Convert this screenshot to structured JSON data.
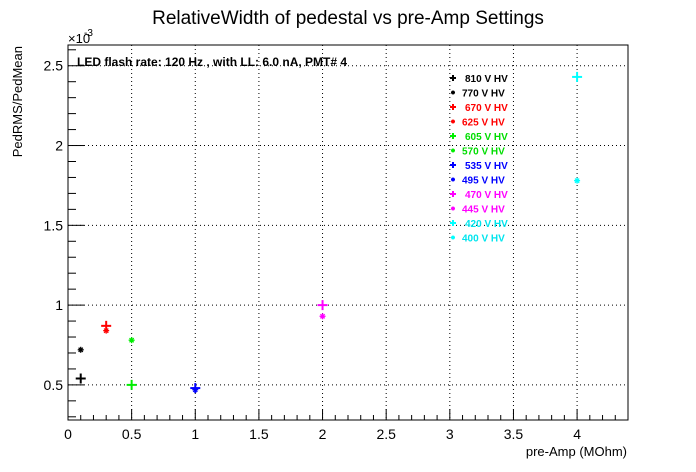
{
  "chart_data": {
    "type": "scatter",
    "title": "RelativeWidth of pedestal vs pre-Amp Settings",
    "annotation": "LED flash rate: 120 Hz , with LL: 6.0 nA, PMT# 4",
    "xlabel": "pre-Amp (MOhm)",
    "ylabel": "PedRMS/PedMean",
    "y_exponent_label": "×10",
    "y_exponent_power": "-3",
    "xlim": [
      0,
      4.4
    ],
    "ylim": [
      0.28,
      2.63
    ],
    "x_ticks": [
      0,
      0.5,
      1,
      1.5,
      2,
      2.5,
      3,
      3.5,
      4
    ],
    "x_tick_labels": [
      "0",
      "0.5",
      "1",
      "1.5",
      "2",
      "2.5",
      "3",
      "3.5",
      "4"
    ],
    "y_ticks": [
      0.5,
      1,
      1.5,
      2,
      2.5
    ],
    "y_tick_labels": [
      "0.5",
      "1",
      "1.5",
      "2",
      "2.5"
    ],
    "grid": true,
    "legend_position": "top-right",
    "series": [
      {
        "name": "810 V HV",
        "color": "#000000",
        "marker": "plus",
        "points": [
          [
            0.1,
            0.54
          ]
        ]
      },
      {
        "name": "770 V HV",
        "color": "#000000",
        "marker": "star",
        "points": [
          [
            0.1,
            0.72
          ]
        ]
      },
      {
        "name": "670 V HV",
        "color": "#ff0000",
        "marker": "plus",
        "points": [
          [
            0.3,
            0.87
          ]
        ]
      },
      {
        "name": "625 V HV",
        "color": "#ff0000",
        "marker": "star",
        "points": [
          [
            0.3,
            0.84
          ]
        ]
      },
      {
        "name": "605 V HV",
        "color": "#00ee00",
        "marker": "plus",
        "points": [
          [
            0.5,
            0.5
          ]
        ]
      },
      {
        "name": "570 V HV",
        "color": "#00ee00",
        "marker": "star",
        "points": [
          [
            0.5,
            0.78
          ]
        ]
      },
      {
        "name": "535 V HV",
        "color": "#0000ff",
        "marker": "plus",
        "points": [
          [
            1.0,
            0.48
          ]
        ]
      },
      {
        "name": "495 V HV",
        "color": "#0000ff",
        "marker": "star",
        "points": [
          [
            1.0,
            0.47
          ]
        ]
      },
      {
        "name": "470 V HV",
        "color": "#ff00ff",
        "marker": "plus",
        "points": [
          [
            2.0,
            1.0
          ]
        ]
      },
      {
        "name": "445 V HV",
        "color": "#ff00ff",
        "marker": "star",
        "points": [
          [
            2.0,
            0.93
          ]
        ]
      },
      {
        "name": "420 V HV",
        "color": "#00ffff",
        "marker": "plus",
        "points": [
          [
            4.0,
            2.43
          ]
        ]
      },
      {
        "name": "400 V HV",
        "color": "#00ffff",
        "marker": "star",
        "points": [
          [
            4.0,
            1.78
          ]
        ]
      }
    ]
  }
}
